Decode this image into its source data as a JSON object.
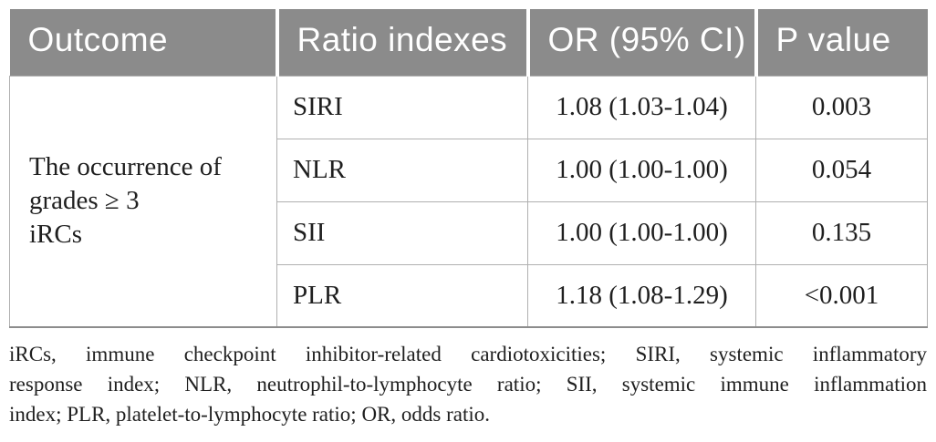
{
  "table": {
    "header": {
      "outcome": "Outcome",
      "ratio_indexes": "Ratio indexes",
      "or_ci": "OR (95% CI)",
      "p_value": "P value"
    },
    "outcome_cell": {
      "lines": [
        "The occurrence of",
        "grades ≥ 3",
        "iRCs"
      ]
    },
    "rows": [
      {
        "ratio_index": "SIRI",
        "or_ci": "1.08 (1.03-1.04)",
        "p_value": "0.003"
      },
      {
        "ratio_index": "NLR",
        "or_ci": "1.00 (1.00-1.00)",
        "p_value": "0.054"
      },
      {
        "ratio_index": "SII",
        "or_ci": "1.00 (1.00-1.00)",
        "p_value": "0.135"
      },
      {
        "ratio_index": "PLR",
        "or_ci": "1.18 (1.08-1.29)",
        "p_value": "<0.001"
      }
    ]
  },
  "footnote": {
    "lines": [
      "iRCs, immune checkpoint inhibitor-related cardiotoxicities; SIRI, systemic inflammatory",
      "response index; NLR, neutrophil-to-lymphocyte ratio; SII, systemic immune inflammation",
      "index; PLR, platelet-to-lymphocyte ratio; OR, odds ratio."
    ]
  },
  "colors": {
    "header_bg": "#8b8b8b",
    "header_text": "#ffffff",
    "body_text": "#1f1f1f",
    "grid_line": "#b0b0b0",
    "bottom_border": "#8c8c8c"
  }
}
